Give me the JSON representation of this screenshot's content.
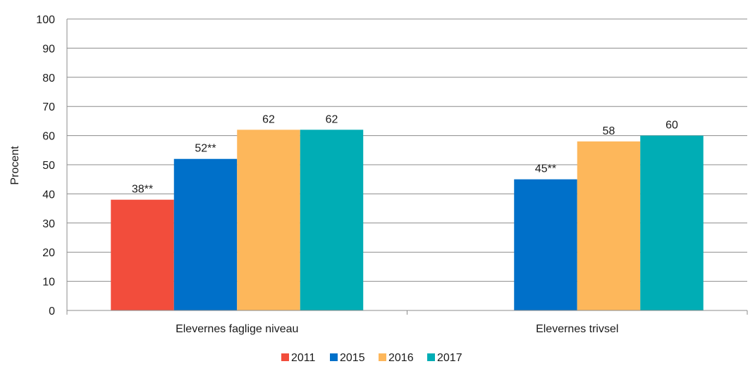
{
  "chart_data": {
    "type": "bar",
    "categories": [
      "Elevernes faglige niveau",
      "Elevernes trivsel"
    ],
    "series": [
      {
        "name": "2011",
        "color": "#f24d3c",
        "values": [
          38,
          null
        ],
        "labels": [
          "38**",
          ""
        ]
      },
      {
        "name": "2015",
        "color": "#0070c9",
        "values": [
          52,
          45
        ],
        "labels": [
          "52**",
          "45**"
        ]
      },
      {
        "name": "2016",
        "color": "#fdb75b",
        "values": [
          62,
          58
        ],
        "labels": [
          "62",
          "58"
        ]
      },
      {
        "name": "2017",
        "color": "#00adb5",
        "values": [
          62,
          60
        ],
        "labels": [
          "62",
          "60"
        ]
      }
    ],
    "ylabel": "Procent",
    "ylim": [
      0,
      100
    ],
    "yticks": [
      0,
      10,
      20,
      30,
      40,
      50,
      60,
      70,
      80,
      90,
      100
    ],
    "grid": true,
    "legend_position": "bottom"
  }
}
